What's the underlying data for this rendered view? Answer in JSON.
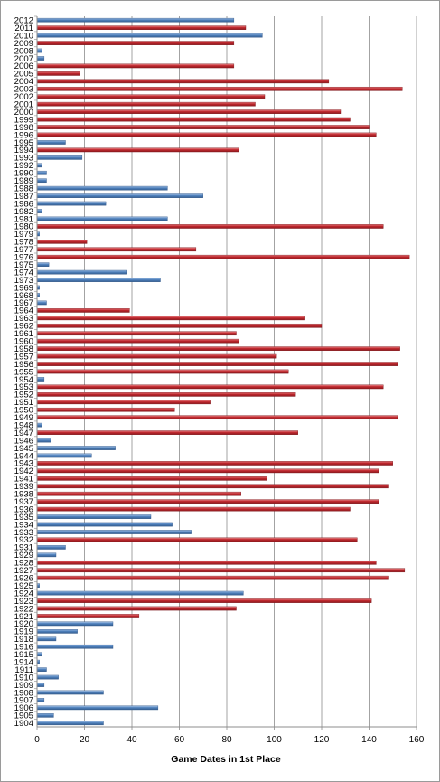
{
  "chart_data": {
    "type": "bar",
    "orientation": "horizontal",
    "xlabel": "Game Dates in 1st Place",
    "ylabel": "",
    "xlim": [
      0,
      160
    ],
    "x_ticks": [
      0,
      20,
      40,
      60,
      80,
      100,
      120,
      140,
      160
    ],
    "grid": "vertical-major",
    "legend": "none",
    "colors": {
      "red": "#c0272d",
      "blue": "#4f81bd"
    },
    "bars": [
      {
        "year": "2012",
        "value": 83,
        "color": "blue"
      },
      {
        "year": "2011",
        "value": 88,
        "color": "red"
      },
      {
        "year": "2010",
        "value": 95,
        "color": "blue"
      },
      {
        "year": "2009",
        "value": 83,
        "color": "red"
      },
      {
        "year": "2008",
        "value": 2,
        "color": "blue"
      },
      {
        "year": "2007",
        "value": 3,
        "color": "blue"
      },
      {
        "year": "2006",
        "value": 83,
        "color": "red"
      },
      {
        "year": "2005",
        "value": 18,
        "color": "red"
      },
      {
        "year": "2004",
        "value": 123,
        "color": "red"
      },
      {
        "year": "2003",
        "value": 154,
        "color": "red"
      },
      {
        "year": "2002",
        "value": 96,
        "color": "red"
      },
      {
        "year": "2001",
        "value": 92,
        "color": "red"
      },
      {
        "year": "2000",
        "value": 128,
        "color": "red"
      },
      {
        "year": "1999",
        "value": 132,
        "color": "red"
      },
      {
        "year": "1998",
        "value": 140,
        "color": "red"
      },
      {
        "year": "1996",
        "value": 143,
        "color": "red"
      },
      {
        "year": "1995",
        "value": 12,
        "color": "blue"
      },
      {
        "year": "1994",
        "value": 85,
        "color": "red"
      },
      {
        "year": "1993",
        "value": 19,
        "color": "blue"
      },
      {
        "year": "1992",
        "value": 2,
        "color": "blue"
      },
      {
        "year": "1990",
        "value": 4,
        "color": "blue"
      },
      {
        "year": "1989",
        "value": 4,
        "color": "blue"
      },
      {
        "year": "1988",
        "value": 55,
        "color": "blue"
      },
      {
        "year": "1987",
        "value": 70,
        "color": "blue"
      },
      {
        "year": "1986",
        "value": 29,
        "color": "blue"
      },
      {
        "year": "1982",
        "value": 2,
        "color": "blue"
      },
      {
        "year": "1981",
        "value": 55,
        "color": "blue"
      },
      {
        "year": "1980",
        "value": 146,
        "color": "red"
      },
      {
        "year": "1979",
        "value": 1,
        "color": "blue"
      },
      {
        "year": "1978",
        "value": 21,
        "color": "red"
      },
      {
        "year": "1977",
        "value": 67,
        "color": "red"
      },
      {
        "year": "1976",
        "value": 157,
        "color": "red"
      },
      {
        "year": "1975",
        "value": 5,
        "color": "blue"
      },
      {
        "year": "1974",
        "value": 38,
        "color": "blue"
      },
      {
        "year": "1973",
        "value": 52,
        "color": "blue"
      },
      {
        "year": "1969",
        "value": 1,
        "color": "blue"
      },
      {
        "year": "1968",
        "value": 1,
        "color": "blue"
      },
      {
        "year": "1967",
        "value": 4,
        "color": "blue"
      },
      {
        "year": "1964",
        "value": 39,
        "color": "red"
      },
      {
        "year": "1963",
        "value": 113,
        "color": "red"
      },
      {
        "year": "1962",
        "value": 120,
        "color": "red"
      },
      {
        "year": "1961",
        "value": 84,
        "color": "red"
      },
      {
        "year": "1960",
        "value": 85,
        "color": "red"
      },
      {
        "year": "1958",
        "value": 153,
        "color": "red"
      },
      {
        "year": "1957",
        "value": 101,
        "color": "red"
      },
      {
        "year": "1956",
        "value": 152,
        "color": "red"
      },
      {
        "year": "1955",
        "value": 106,
        "color": "red"
      },
      {
        "year": "1954",
        "value": 3,
        "color": "blue"
      },
      {
        "year": "1953",
        "value": 146,
        "color": "red"
      },
      {
        "year": "1952",
        "value": 109,
        "color": "red"
      },
      {
        "year": "1951",
        "value": 73,
        "color": "red"
      },
      {
        "year": "1950",
        "value": 58,
        "color": "red"
      },
      {
        "year": "1949",
        "value": 152,
        "color": "red"
      },
      {
        "year": "1948",
        "value": 2,
        "color": "blue"
      },
      {
        "year": "1947",
        "value": 110,
        "color": "red"
      },
      {
        "year": "1946",
        "value": 6,
        "color": "blue"
      },
      {
        "year": "1945",
        "value": 33,
        "color": "blue"
      },
      {
        "year": "1944",
        "value": 23,
        "color": "blue"
      },
      {
        "year": "1943",
        "value": 150,
        "color": "red"
      },
      {
        "year": "1942",
        "value": 144,
        "color": "red"
      },
      {
        "year": "1941",
        "value": 97,
        "color": "red"
      },
      {
        "year": "1939",
        "value": 148,
        "color": "red"
      },
      {
        "year": "1938",
        "value": 86,
        "color": "red"
      },
      {
        "year": "1937",
        "value": 144,
        "color": "red"
      },
      {
        "year": "1936",
        "value": 132,
        "color": "red"
      },
      {
        "year": "1935",
        "value": 48,
        "color": "blue"
      },
      {
        "year": "1934",
        "value": 57,
        "color": "blue"
      },
      {
        "year": "1933",
        "value": 65,
        "color": "blue"
      },
      {
        "year": "1932",
        "value": 135,
        "color": "red"
      },
      {
        "year": "1931",
        "value": 12,
        "color": "blue"
      },
      {
        "year": "1929",
        "value": 8,
        "color": "blue"
      },
      {
        "year": "1928",
        "value": 143,
        "color": "red"
      },
      {
        "year": "1927",
        "value": 155,
        "color": "red"
      },
      {
        "year": "1926",
        "value": 148,
        "color": "red"
      },
      {
        "year": "1925",
        "value": 1,
        "color": "blue"
      },
      {
        "year": "1924",
        "value": 87,
        "color": "blue"
      },
      {
        "year": "1923",
        "value": 141,
        "color": "red"
      },
      {
        "year": "1922",
        "value": 84,
        "color": "red"
      },
      {
        "year": "1921",
        "value": 43,
        "color": "red"
      },
      {
        "year": "1920",
        "value": 32,
        "color": "blue"
      },
      {
        "year": "1919",
        "value": 17,
        "color": "blue"
      },
      {
        "year": "1918",
        "value": 8,
        "color": "blue"
      },
      {
        "year": "1916",
        "value": 32,
        "color": "blue"
      },
      {
        "year": "1915",
        "value": 2,
        "color": "blue"
      },
      {
        "year": "1914",
        "value": 1,
        "color": "blue"
      },
      {
        "year": "1911",
        "value": 4,
        "color": "blue"
      },
      {
        "year": "1910",
        "value": 9,
        "color": "blue"
      },
      {
        "year": "1909",
        "value": 3,
        "color": "blue"
      },
      {
        "year": "1908",
        "value": 28,
        "color": "blue"
      },
      {
        "year": "1907",
        "value": 3,
        "color": "blue"
      },
      {
        "year": "1906",
        "value": 51,
        "color": "blue"
      },
      {
        "year": "1905",
        "value": 7,
        "color": "blue"
      },
      {
        "year": "1904",
        "value": 28,
        "color": "blue"
      }
    ]
  }
}
